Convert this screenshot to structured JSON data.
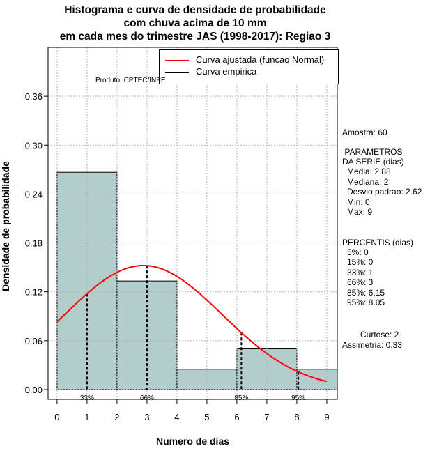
{
  "titles": [
    "Histograma e curva de densidade de probabilidade",
    "com chuva acima de 10 mm",
    "em cada mes do trimestre JAS (1998-2017): Regiao 3"
  ],
  "credit": "Produto: CPTEC/INPE",
  "legend": {
    "fitted": "Curva ajustada (funcao Normal)",
    "empirical": "Curva empirica",
    "fitted_color": "#ff0000",
    "empirical_color": "#000000"
  },
  "stats": {
    "sample": "Amostra: 60",
    "params_title_1": " PARAMETROS",
    "params_title_2": "DA SERIE (dias)",
    "mean": "Media: 2.88",
    "median": "Mediana: 2",
    "sd": "Desvio padrao: 2.62",
    "min": "Min: 0",
    "max": "Max: 9",
    "percentis_title": "PERCENTIS (dias)",
    "p5": "5%: 0",
    "p15": "15%: 0",
    "p33": "33%: 1",
    "p66": "66%: 3",
    "p85": "85%: 6.15",
    "p95": "95%: 8.05",
    "kurtosis": "Curtose: 2",
    "skewness": "Assimetria: 0.33"
  },
  "chart_data": {
    "type": "bar",
    "xlabel": "Numero de dias",
    "ylabel": "Densidade de probabilidade",
    "xlim": [
      -0.3,
      9.35
    ],
    "ylim": [
      -0.012,
      0.42
    ],
    "xticks": [
      0,
      1,
      2,
      3,
      4,
      5,
      6,
      7,
      8,
      9
    ],
    "yticks": [
      0.0,
      0.06,
      0.12,
      0.18,
      0.24,
      0.3,
      0.36
    ],
    "ytick_labels": [
      "0.00",
      "0.06",
      "0.12",
      "0.18",
      "0.24",
      "0.30",
      "0.36"
    ],
    "bins": [
      {
        "x0": 0,
        "x1": 2,
        "density": 0.2667
      },
      {
        "x0": 2,
        "x1": 4,
        "density": 0.1333
      },
      {
        "x0": 4,
        "x1": 6,
        "density": 0.025
      },
      {
        "x0": 6,
        "x1": 8,
        "density": 0.05
      },
      {
        "x0": 8,
        "x1": 9.35,
        "density": 0.025
      }
    ],
    "bar_color": "#b3cccc",
    "normal_fit": {
      "mean": 2.88,
      "sd": 2.62,
      "x_from": 0,
      "x_to": 9
    },
    "percentile_markers": [
      {
        "label": "33%",
        "x": 1
      },
      {
        "label": "66%",
        "x": 3
      },
      {
        "label": "85%",
        "x": 6.15
      },
      {
        "label": "95%",
        "x": 8.05
      }
    ],
    "grid": true
  }
}
